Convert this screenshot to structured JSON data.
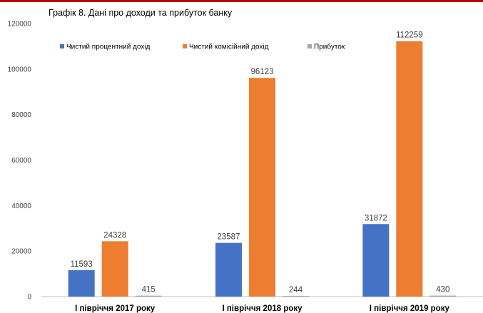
{
  "title": "Графік 8. Дані про доходи та прибуток банку",
  "colors": {
    "top_rule": "#c00000",
    "axis": "#bfbfbf"
  },
  "chart_data": {
    "type": "bar",
    "title": "Графік 8. Дані про доходи та прибуток банку",
    "categories": [
      "І півріччя 2017 року",
      "І півріччя 2018 року",
      "І півріччя 2019 року"
    ],
    "series": [
      {
        "name": "Чистий процентний дохід",
        "color": "#4472c4",
        "values": [
          11593,
          23587,
          31872
        ]
      },
      {
        "name": "Чистий комісійний дохід",
        "color": "#ed7d31",
        "values": [
          24328,
          96123,
          112259
        ]
      },
      {
        "name": "Прибуток",
        "color": "#a5a5a5",
        "values": [
          415,
          244,
          430
        ]
      }
    ],
    "ylim": [
      0,
      120000
    ],
    "yticks": [
      0,
      20000,
      40000,
      60000,
      80000,
      100000,
      120000
    ],
    "grid": false,
    "legend": "top-left",
    "data_labels": true,
    "xlabel": "",
    "ylabel": ""
  }
}
